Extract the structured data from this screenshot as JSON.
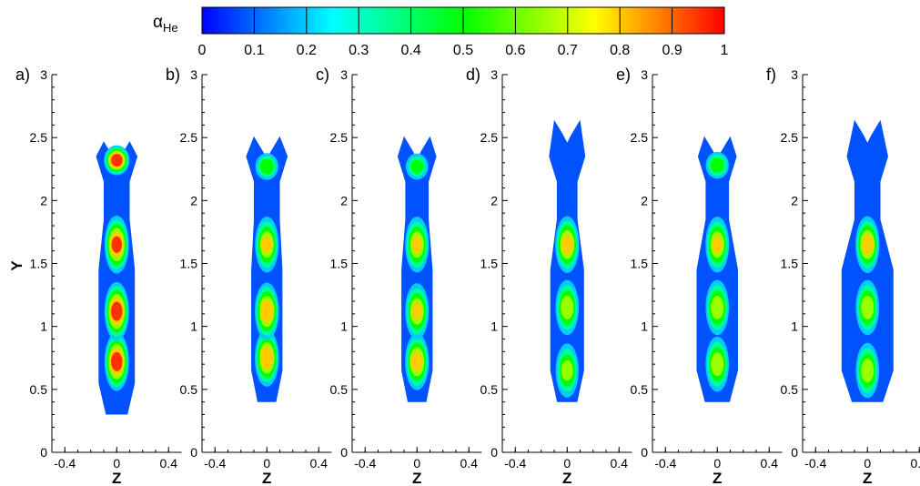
{
  "chart_data": {
    "type": "contour",
    "colorbar": {
      "label_main": "α",
      "label_sub": "He",
      "ticks": [
        "0",
        "0.1",
        "0.2",
        "0.3",
        "0.4",
        "0.5",
        "0.6",
        "0.7",
        "0.8",
        "0.9",
        "1"
      ],
      "range": [
        0,
        1
      ],
      "colormap": [
        "#0000ff",
        "#0080ff",
        "#00ffff",
        "#00ff80",
        "#00ff00",
        "#80ff00",
        "#ffff00",
        "#ff8000",
        "#ff0000"
      ]
    },
    "xlabel": "Z",
    "ylabel": "Y",
    "xlim": [
      -0.5,
      0.5
    ],
    "ylim": [
      0,
      3
    ],
    "xticks": [
      "-0.4",
      "0",
      "0.4"
    ],
    "yticks": [
      "0",
      "0.5",
      "1",
      "1.5",
      "2",
      "2.5",
      "3"
    ],
    "panels": [
      {
        "label": "a)",
        "ymin": 0.3,
        "ytop": 2.47,
        "half_width": [
          0.14,
          0.1
        ],
        "peaks": [
          {
            "y": 0.72,
            "value": 1.0
          },
          {
            "y": 1.12,
            "value": 1.0
          },
          {
            "y": 1.65,
            "value": 0.95
          },
          {
            "y": 2.32,
            "value": 1.0
          }
        ]
      },
      {
        "label": "b)",
        "ymin": 0.4,
        "ytop": 2.51,
        "half_width": [
          0.12,
          0.1
        ],
        "peaks": [
          {
            "y": 0.75,
            "value": 0.9
          },
          {
            "y": 1.12,
            "value": 0.9
          },
          {
            "y": 1.65,
            "value": 0.8
          },
          {
            "y": 2.27,
            "value": 0.6
          }
        ]
      },
      {
        "label": "c)",
        "ymin": 0.4,
        "ytop": 2.51,
        "half_width": [
          0.12,
          0.09
        ],
        "peaks": [
          {
            "y": 0.72,
            "value": 0.85
          },
          {
            "y": 1.12,
            "value": 0.8
          },
          {
            "y": 1.65,
            "value": 0.8
          },
          {
            "y": 2.27,
            "value": 0.55
          }
        ]
      },
      {
        "label": "d)",
        "ymin": 0.4,
        "ytop": 2.64,
        "half_width": [
          0.13,
          0.08
        ],
        "peaks": [
          {
            "y": 0.65,
            "value": 0.7
          },
          {
            "y": 1.15,
            "value": 0.75
          },
          {
            "y": 1.65,
            "value": 0.85
          }
        ]
      },
      {
        "label": "e)",
        "ymin": 0.4,
        "ytop": 2.51,
        "half_width": [
          0.16,
          0.09
        ],
        "peaks": [
          {
            "y": 0.7,
            "value": 0.75
          },
          {
            "y": 1.15,
            "value": 0.75
          },
          {
            "y": 1.65,
            "value": 0.8
          },
          {
            "y": 2.28,
            "value": 0.6
          }
        ]
      },
      {
        "label": "f)",
        "ymin": 0.4,
        "ytop": 2.64,
        "half_width": [
          0.2,
          0.1
        ],
        "peaks": [
          {
            "y": 0.65,
            "value": 0.75
          },
          {
            "y": 1.15,
            "value": 0.75
          },
          {
            "y": 1.65,
            "value": 0.85
          }
        ]
      }
    ]
  }
}
